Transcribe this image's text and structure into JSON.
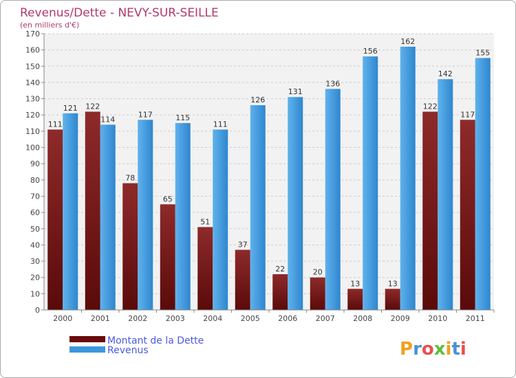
{
  "chart_data": {
    "type": "bar",
    "title": "Revenus/Dette - NEVY-SUR-SEILLE",
    "subtitle": "(en milliers d'€)",
    "categories": [
      "2000",
      "2001",
      "2002",
      "2003",
      "2004",
      "2005",
      "2006",
      "2007",
      "2008",
      "2009",
      "2010",
      "2011"
    ],
    "series": [
      {
        "name": "Montant de la Dette",
        "color": "#7a1a1a",
        "values": [
          111,
          122,
          78,
          65,
          51,
          37,
          22,
          20,
          13,
          13,
          122,
          117
        ]
      },
      {
        "name": "Revenus",
        "color": "#3d97dc",
        "values": [
          121,
          114,
          117,
          115,
          111,
          126,
          131,
          136,
          156,
          162,
          142,
          155
        ]
      }
    ],
    "ylim": [
      0,
      170
    ],
    "ytick_step": 10,
    "grid": true,
    "legend_position": "bottom-left"
  },
  "legend": {
    "debt_label": "Montant de la Dette",
    "revenue_label": "Revenus"
  },
  "logo": {
    "letters": [
      "P",
      "r",
      "o",
      "x",
      "i",
      "t",
      "i"
    ],
    "colors": [
      "#f0a020",
      "#4a90d9",
      "#e85050",
      "#5bbf3a",
      "#f0a020",
      "#4a90d9",
      "#e85050"
    ]
  }
}
